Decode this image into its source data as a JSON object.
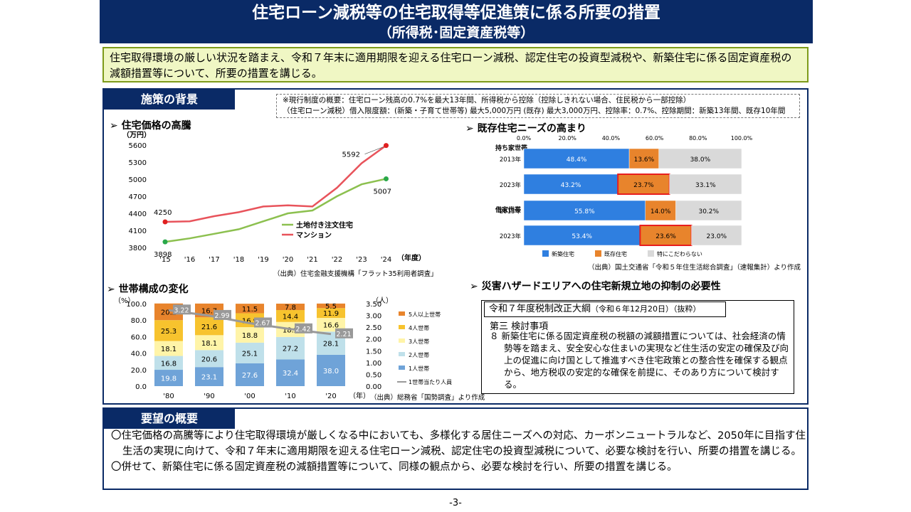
{
  "title": {
    "line1": "住宅ローン減税等の住宅取得等促進策に係る所要の措置",
    "line2": "（所得税･固定資産税等）"
  },
  "lead": "住宅取得環境の厳しい状況を踏まえ、令和７年末に適用期限を迎える住宅ローン減税、認定住宅の投資型減税や、新築住宅に係る固定資産税の減額措置等について、所要の措置を講じる。",
  "background": {
    "tab": "施策の背景",
    "note": {
      "line1": "※現行制度の概要：住宅ローン残高の0.7%を最大13年間、所得税から控除（控除しきれない場合、住民税から一部控除）",
      "line2": "（住宅ローン減税）借入限度額：(新築・子育て世帯等) 最大5,000万円 (既存) 最大3,000万円、控除率：0.7%、控除期間：新築13年間、既存10年間"
    }
  },
  "sections": {
    "price": "➢ 住宅価格の高騰",
    "stock": "➢ 既存住宅ニーズの高まり",
    "household": "➢ 世帯構成の変化",
    "hazard": "➢ 災害ハザードエリアへの住宅新規立地の抑制の必要性"
  },
  "sources": {
    "price": "（出典）住宅金融支援機構「フラット35利用者調査」",
    "stock": "（出典）国土交通省「令和５年住生活総合調査」（速報集計）より作成",
    "household": "（出典）総務省「国勢調査」より作成"
  },
  "law": {
    "title": "令和７年度税制改正大綱",
    "title_note": "（令和６年12月20日）（抜粋）",
    "sub": "第三 検討事項",
    "body": "８ 新築住宅に係る固定資産税の税額の減額措置については、社会経済の情勢等を踏まえ、安全安心な住まいの実現など住生活の安定の確保及び向上の促進に向け国として推進すべき住宅政策との整合性を確保する観点から、地方税収の安定的な確保を前提に、そのあり方について検討する。"
  },
  "yobo": {
    "tab": "要望の概要",
    "items": [
      "〇住宅価格の高騰等により住宅取得環境が厳しくなる中においても、多様化する居住ニーズへの対応、カーボンニュートラルなど、2050年に目指す住生活の実現に向けて、令和７年末に適用期限を迎える住宅ローン減税、認定住宅の投資型減税について、必要な検討を行い、所要の措置を講じる。",
      "〇併せて、新築住宅に係る固定資産税の減額措置等について、同様の観点から、必要な検討を行い、所要の措置を講じる。"
    ]
  },
  "page_number": "-3-",
  "chart_data": [
    {
      "type": "line",
      "title": "住宅価格の高騰",
      "ylabel": "（万円）",
      "xlabel": "（年度）",
      "categories": [
        "'15",
        "'16",
        "'17",
        "'18",
        "'19",
        "'20",
        "'21",
        "'22",
        "'23",
        "'24"
      ],
      "yticks": [
        3800,
        4100,
        4400,
        4700,
        5000,
        5300,
        5600
      ],
      "ylim": [
        3800,
        5600
      ],
      "series": [
        {
          "name": "土地付き注文住宅",
          "color": "#8cc04f",
          "values": [
            3898,
            3960,
            4040,
            4120,
            4260,
            4400,
            4450,
            4700,
            4910,
            5007
          ]
        },
        {
          "name": "マンション",
          "color": "#e8535b",
          "values": [
            4250,
            4260,
            4350,
            4420,
            4520,
            4540,
            4520,
            4850,
            5280,
            5592
          ]
        }
      ],
      "labels": {
        "first_line1": "4250",
        "first_line2": "3898",
        "last_series1": "5007",
        "last_series2": "5592"
      }
    },
    {
      "type": "bar",
      "title": "既存住宅ニーズの高まり",
      "orientation": "horizontal",
      "stacked": true,
      "axis_ticks": [
        "0.0%",
        "20.0%",
        "40.0%",
        "60.0%",
        "80.0%",
        "100.0%"
      ],
      "groups": [
        "持ち家世帯",
        "借家世帯"
      ],
      "categories": [
        "2013年",
        "2023年",
        "2013年",
        "2023年"
      ],
      "series": [
        {
          "name": "新築住宅",
          "color": "#2f7fe0",
          "values": [
            48.4,
            43.2,
            55.8,
            53.4
          ]
        },
        {
          "name": "既存住宅",
          "color": "#e8842c",
          "values": [
            13.6,
            23.7,
            14.0,
            23.6
          ]
        },
        {
          "name": "特にこだわらない",
          "color": "#d9d9d9",
          "values": [
            38.0,
            33.1,
            30.2,
            23.0
          ]
        }
      ],
      "value_labels": [
        [
          "48.4%",
          "13.6%",
          "38.0%"
        ],
        [
          "43.2%",
          "23.7%",
          "33.1%"
        ],
        [
          "55.8%",
          "14.0%",
          "30.2%"
        ],
        [
          "53.4%",
          "23.6%",
          "23.0%"
        ]
      ],
      "highlight": "既存住宅 2023年"
    },
    {
      "type": "bar",
      "title": "世帯構成の変化",
      "stacked": true,
      "categories": [
        "'80",
        "'90",
        "'00",
        "'10",
        "'20"
      ],
      "xlabel": "（年）",
      "ylabel_left": "（%）",
      "ylabel_right": "（人）",
      "yticks_left": [
        "0.0",
        "20.0",
        "40.0",
        "60.0",
        "80.0",
        "100.0"
      ],
      "yticks_right": [
        "0.00",
        "0.50",
        "1.00",
        "1.50",
        "2.00",
        "2.50",
        "3.00",
        "3.50"
      ],
      "series": [
        {
          "name": "1人世帯",
          "color": "#6fa3d8",
          "values": [
            19.8,
            23.1,
            27.6,
            32.4,
            38.0
          ]
        },
        {
          "name": "2人世帯",
          "color": "#bfe0ea",
          "values": [
            16.8,
            20.6,
            25.1,
            27.2,
            28.1
          ]
        },
        {
          "name": "3人世帯",
          "color": "#fff4a8",
          "values": [
            18.1,
            18.1,
            18.8,
            18.2,
            16.6
          ]
        },
        {
          "name": "4人世帯",
          "color": "#f7c32e",
          "values": [
            25.3,
            21.6,
            16.9,
            14.4,
            11.9
          ]
        },
        {
          "name": "5人以上世帯",
          "color": "#e8842c",
          "values": [
            20.2,
            16.7,
            11.5,
            7.8,
            5.5
          ]
        }
      ],
      "line": {
        "name": "1世帯当たり人員",
        "color": "#999999",
        "values": [
          3.22,
          2.99,
          2.67,
          2.42,
          2.21
        ],
        "labels": [
          "3.22",
          "2.99",
          "2.67",
          "2.42",
          "2.21"
        ]
      }
    }
  ]
}
